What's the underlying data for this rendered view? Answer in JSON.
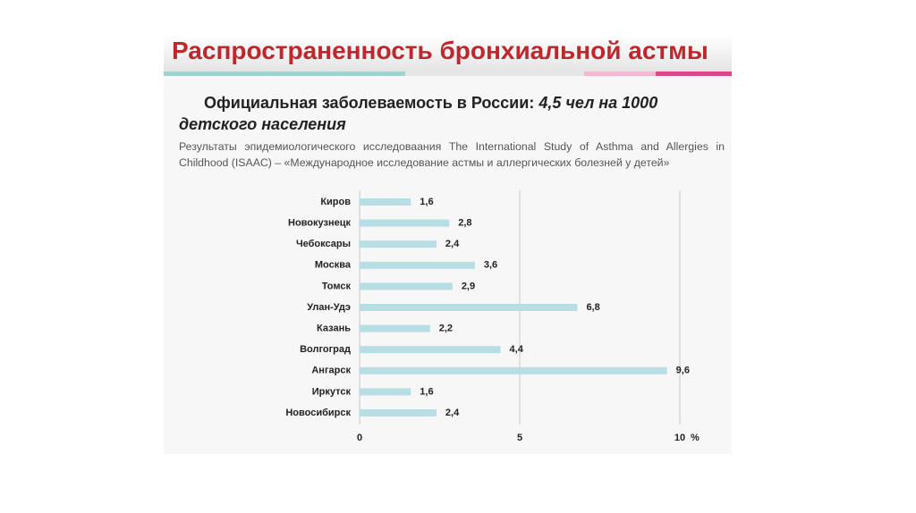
{
  "chart_data": {
    "type": "bar",
    "orientation": "horizontal",
    "title": "Распространенность бронхиальной астмы",
    "subtitle": [
      "Официальная заболеваемость в России:",
      "4,5 чел на 1000 детского населения"
    ],
    "annotations": [
      "Результаты эпидемиологического исследоваания The International Study of Asthma and Allergies in Childhood (ISAAC) – «Международное исследование астмы и аллергических болезней у детей»"
    ],
    "categories": [
      "Киров",
      "Новокузнецк",
      "Чебоксары",
      "Москва",
      "Томск",
      "Улан-Удэ",
      "Казань",
      "Волгоград",
      "Ангарск",
      "Иркутск",
      "Новосибирск"
    ],
    "values": [
      1.6,
      2.8,
      2.4,
      3.6,
      2.9,
      6.8,
      2.2,
      4.4,
      9.6,
      1.6,
      2.4
    ],
    "value_labels": [
      "1,6",
      "2,8",
      "2,4",
      "3,6",
      "2,9",
      "6,8",
      "2,2",
      "4,4",
      "9,6",
      "1,6",
      "2,4"
    ],
    "color": "#b7dde5",
    "xlabel": "%",
    "xlim": [
      0,
      10
    ],
    "xticks": [
      0,
      5,
      10
    ],
    "grid": true
  }
}
